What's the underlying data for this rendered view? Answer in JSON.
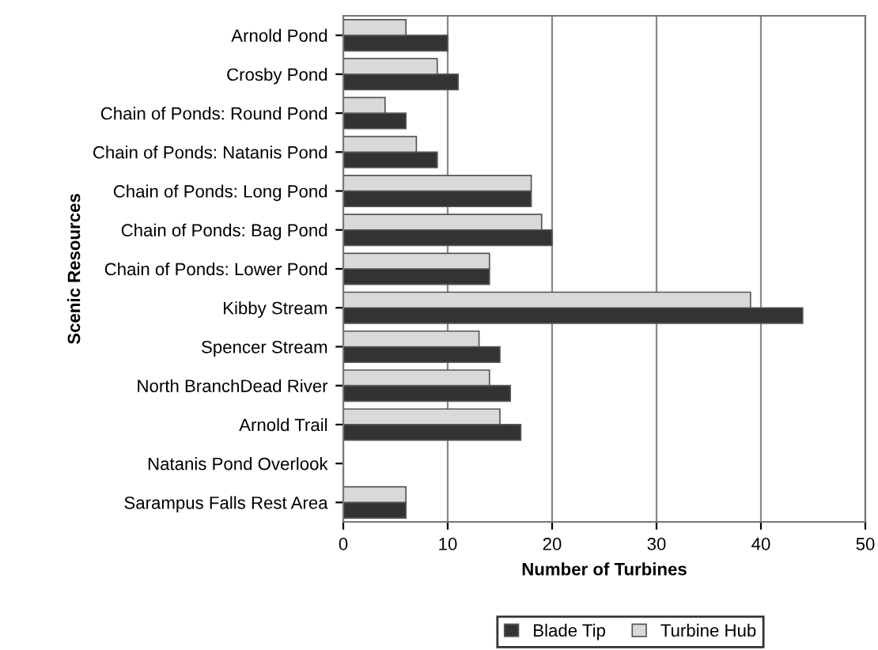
{
  "chart_data": {
    "type": "bar",
    "orientation": "horizontal",
    "xlabel": "Number of Turbines",
    "ylabel": "Scenic Resources",
    "categories": [
      "Arnold Pond",
      "Crosby Pond",
      "Chain of Ponds: Round Pond",
      "Chain of Ponds: Natanis Pond",
      "Chain of Ponds: Long Pond",
      "Chain of Ponds: Bag Pond",
      "Chain of Ponds: Lower Pond",
      "Kibby Stream",
      "Spencer Stream",
      "North BranchDead River",
      "Arnold Trail",
      "Natanis Pond Overlook",
      "Sarampus Falls Rest Area"
    ],
    "series": [
      {
        "name": "Blade Tip",
        "color": "#333333",
        "values": [
          10,
          11,
          6,
          9,
          18,
          20,
          14,
          44,
          15,
          16,
          17,
          0,
          6
        ]
      },
      {
        "name": "Turbine Hub",
        "color": "#d9d9d9",
        "values": [
          6,
          9,
          4,
          7,
          18,
          19,
          14,
          39,
          13,
          14,
          15,
          0,
          6
        ]
      }
    ],
    "xlim": [
      0,
      50
    ],
    "xticks": [
      0,
      10,
      20,
      30,
      40,
      50
    ],
    "grid": "x",
    "legend": "bottom"
  }
}
